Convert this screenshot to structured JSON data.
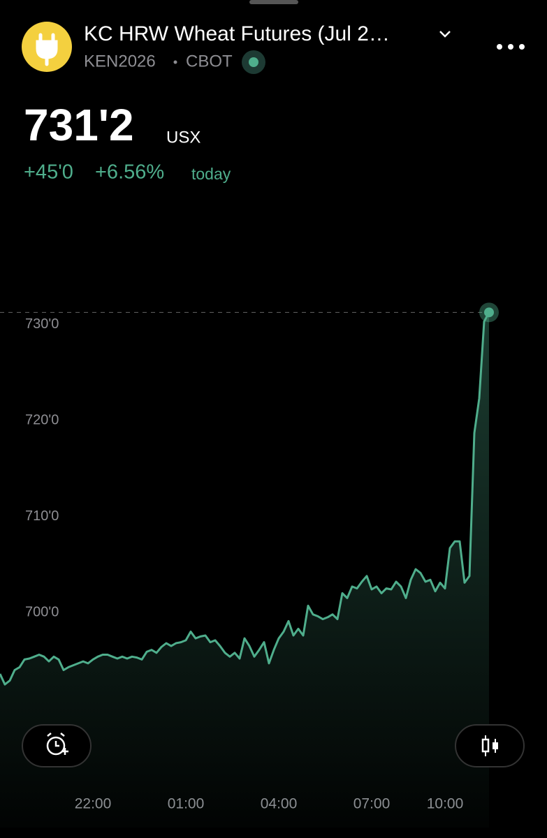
{
  "header": {
    "title": "KC HRW Wheat Futures (Jul 2…",
    "symbol": "KEN2026",
    "exchange": "CBOT"
  },
  "quote": {
    "price": "731'2",
    "unit": "USX",
    "change": "+45'0",
    "change_pct": "+6.56%",
    "period": "today"
  },
  "chart_data": {
    "type": "line",
    "color": "#4fae8c",
    "last_value": 731.25,
    "categories": [
      null,
      null,
      null,
      null,
      null,
      null,
      null,
      null,
      null,
      null,
      null,
      null,
      null,
      null,
      null,
      null,
      null,
      null,
      null,
      "22:00",
      null,
      null,
      null,
      null,
      null,
      null,
      null,
      null,
      null,
      null,
      null,
      null,
      null,
      null,
      null,
      null,
      null,
      null,
      "01:00",
      null,
      null,
      null,
      null,
      null,
      null,
      null,
      null,
      null,
      null,
      null,
      null,
      null,
      null,
      null,
      null,
      null,
      null,
      "04:00",
      null,
      null,
      null,
      null,
      null,
      null,
      null,
      null,
      null,
      null,
      null,
      null,
      null,
      null,
      null,
      null,
      null,
      null,
      "07:00",
      null,
      null,
      null,
      null,
      null,
      null,
      null,
      null,
      null,
      null,
      null,
      null,
      null,
      null,
      "10:00",
      null,
      null,
      null,
      null,
      null,
      null,
      null,
      null,
      null
    ],
    "values": [
      693.6,
      692.5,
      692.9,
      694.0,
      694.3,
      695.1,
      695.2,
      695.4,
      695.6,
      695.4,
      694.9,
      695.4,
      695.1,
      694.0,
      694.3,
      694.5,
      694.7,
      694.9,
      694.7,
      695.1,
      695.4,
      695.6,
      695.6,
      695.4,
      695.2,
      695.4,
      695.2,
      695.4,
      695.3,
      695.1,
      695.9,
      696.1,
      695.8,
      696.4,
      696.8,
      696.5,
      696.8,
      696.9,
      697.1,
      698.0,
      697.3,
      697.5,
      697.6,
      696.9,
      697.1,
      696.5,
      695.8,
      695.4,
      695.8,
      695.2,
      697.3,
      696.5,
      695.4,
      696.1,
      696.9,
      694.7,
      696.1,
      697.3,
      698.0,
      699.1,
      697.6,
      698.3,
      697.6,
      700.7,
      699.8,
      699.6,
      699.3,
      699.5,
      699.8,
      699.3,
      702.0,
      701.5,
      702.7,
      702.5,
      703.2,
      703.8,
      702.4,
      702.7,
      702.0,
      702.5,
      702.4,
      703.2,
      702.7,
      701.5,
      703.4,
      704.5,
      704.1,
      703.2,
      703.4,
      702.2,
      703.1,
      702.5,
      706.7,
      707.4,
      707.4,
      703.1,
      703.8,
      718.7,
      722.3,
      730.3,
      731.25
    ],
    "ylim": [
      688,
      736
    ],
    "yticks": [
      {
        "value": 700,
        "label": "700'0"
      },
      {
        "value": 710,
        "label": "710'0"
      },
      {
        "value": 720,
        "label": "720'0"
      },
      {
        "value": 730,
        "label": "730'0"
      }
    ]
  }
}
